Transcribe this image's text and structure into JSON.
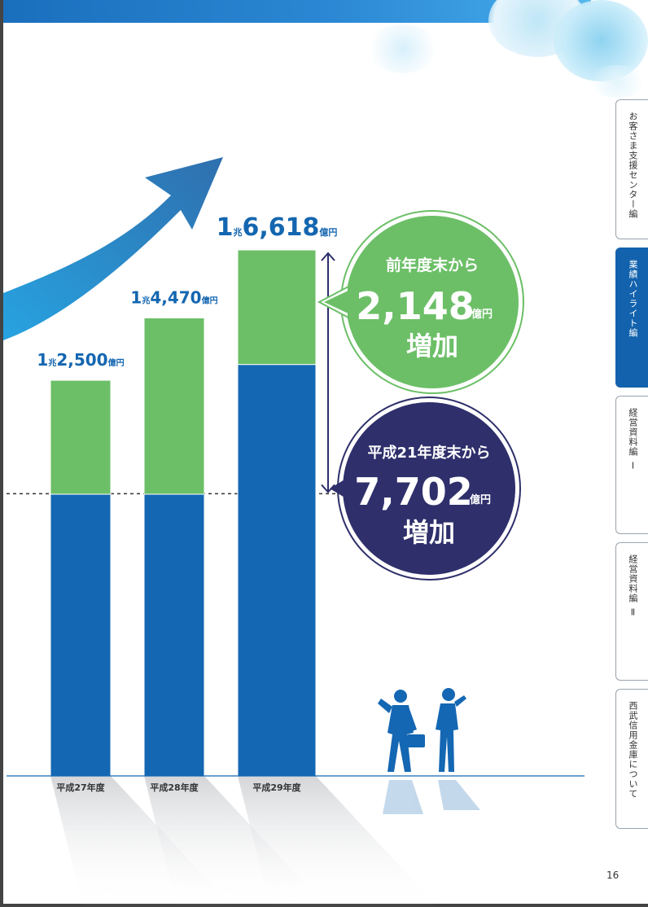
{
  "page": {
    "number": "16"
  },
  "tabs": [
    {
      "label": "お客さま支援センター編",
      "active": false
    },
    {
      "label": "業績ハイライト編",
      "active": true
    },
    {
      "label": "経営資料編 Ⅰ",
      "active": false
    },
    {
      "label": "経営資料編 Ⅱ",
      "active": false
    },
    {
      "label": "西武信用金庫について",
      "active": false
    }
  ],
  "colors": {
    "blue": "#1467b3",
    "green": "#6cbf67",
    "navy": "#2e2f6b",
    "label": "#1466b0"
  },
  "callouts": {
    "prev_year": {
      "line1": "前年度末から",
      "value": "2,148",
      "unit": "億円",
      "line3": "増加",
      "color": "#6cbf67"
    },
    "since_h21": {
      "line1": "平成21年度末から",
      "value": "7,702",
      "unit": "億円",
      "line3": "増加",
      "color": "#2e2f6b"
    }
  },
  "chart_data": {
    "type": "bar",
    "stacked": true,
    "categories": [
      "平成27年度",
      "平成28年度",
      "平成29年度"
    ],
    "series": [
      {
        "values": [
          8900,
          8900,
          13000
        ],
        "color": "#1467b3"
      },
      {
        "values": [
          3600,
          5570,
          3618
        ],
        "color": "#6cbf67"
      }
    ],
    "totals": [
      12500,
      14470,
      16618
    ],
    "total_labels": [
      {
        "cho": "1",
        "cho_unit": "兆",
        "rest": "2,500",
        "unit": "億円"
      },
      {
        "cho": "1",
        "cho_unit": "兆",
        "rest": "4,470",
        "unit": "億円"
      },
      {
        "cho": "1",
        "cho_unit": "兆",
        "rest": "6,618",
        "unit": "億円"
      }
    ],
    "baseline_reference": 8916,
    "ylim": [
      0,
      17500
    ],
    "grid": false,
    "legend": "none"
  }
}
